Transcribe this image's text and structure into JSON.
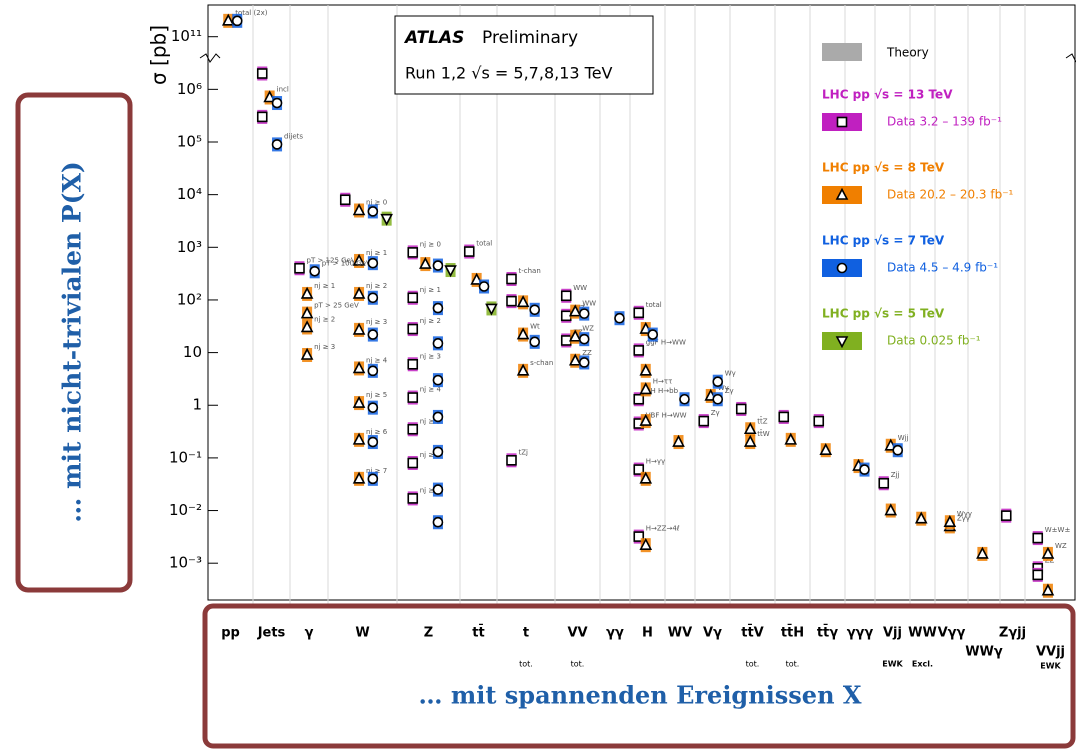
{
  "overlay": {
    "left_caption": "… mit nicht-trivialen P(X)",
    "bottom_caption": "… mit spannenden Ereignissen X"
  },
  "chart_data": {
    "type": "scatter",
    "experiment": "ATLAS",
    "status": "Preliminary",
    "run_label": "Run 1,2  √s = 5,7,8,13 TeV",
    "ylabel": "σ [pb]",
    "log_y": true,
    "ylim": [
      0.0002,
      400000000000
    ],
    "ybreak": [
      10000000,
      100000000000
    ],
    "yticks": [
      {
        "value": 100000000000,
        "label": "10¹¹"
      },
      {
        "value": 1000000,
        "label": "10⁶"
      },
      {
        "value": 100000,
        "label": "10⁵"
      },
      {
        "value": 10000,
        "label": "10⁴"
      },
      {
        "value": 1000,
        "label": "10³"
      },
      {
        "value": 100,
        "label": "10²"
      },
      10,
      1,
      {
        "value": 0.1,
        "label": "10⁻¹"
      },
      {
        "value": 0.01,
        "label": "10⁻²"
      },
      {
        "value": 0.001,
        "label": "10⁻³"
      }
    ],
    "categories": [
      "pp",
      "Jets",
      "γ",
      "W",
      "Z",
      "tt̄",
      "t",
      "VV",
      "γγ",
      "H",
      "WV",
      "Vγ",
      "tt̄V",
      "tt̄H",
      "tt̄γ",
      "γγγ",
      "Vjj",
      "WW",
      "Vγγ",
      "WWγ",
      "Zγjj",
      "VVjj"
    ],
    "sublabels": [
      null,
      null,
      null,
      null,
      null,
      null,
      "tot.",
      "tot.",
      null,
      null,
      null,
      null,
      "tot.",
      "tot.",
      null,
      null,
      "EWK",
      "Excl.",
      null,
      null,
      null,
      "EWK"
    ],
    "theory_label": "Theory",
    "theory_color": "#aaaaaa",
    "series": [
      {
        "name": "LHC pp  √s = 13 TeV",
        "lumi": "Data  3.2 – 139 fb⁻¹",
        "color": "#c020c0",
        "marker": "square",
        "x": [
          "pp",
          "Jets",
          "Jets",
          "γ",
          "W",
          "Z",
          "Z",
          "Z",
          "Z",
          "Z",
          "Z",
          "Z",
          "Z",
          "tt̄",
          "t",
          "t",
          "t",
          "VV",
          "VV",
          "VV",
          "H",
          "H",
          "H",
          "H",
          "H",
          "H",
          "Vγ",
          "tt̄V",
          "tt̄H",
          "tt̄γ",
          "Vjj",
          "Zγjj",
          "VVjj",
          "VVjj",
          "VVjj"
        ],
        "values": [
          78000000000,
          2000000,
          300000,
          400,
          8000,
          800,
          110,
          28,
          6,
          1.4,
          0.35,
          0.08,
          0.017,
          830,
          250,
          95,
          0.09,
          120,
          50,
          17,
          57,
          11,
          1.3,
          0.45,
          0.06,
          0.0032,
          0.5,
          0.85,
          0.6,
          0.5,
          0.033,
          0.008,
          0.003,
          0.0008,
          0.0006
        ],
        "labels": [
          null,
          null,
          null,
          "pT > 125 GeV",
          null,
          "nj ≥ 0",
          "nj ≥ 1",
          "nj ≥ 2",
          "nj ≥ 3",
          "nj ≥ 4",
          "nj ≥ 5",
          "nj ≥ 6",
          "nj ≥ 7",
          "total",
          "t-chan",
          null,
          "tZj",
          "WW",
          "WZ",
          "ZZ",
          "total",
          "ggF H→WW",
          "VH H→bb",
          "VBF H→WW",
          "H→γγ",
          "H→ZZ→4ℓ",
          "Zγ",
          null,
          null,
          null,
          "Zjj",
          null,
          "W±W±",
          "ZZ",
          null
        ]
      },
      {
        "name": "LHC pp  √s = 8 TeV",
        "lumi": "Data  20.2 – 20.3 fb⁻¹",
        "color": "#f07f00",
        "marker": "triangle",
        "x": [
          "pp",
          "pp",
          "Jets",
          "γ",
          "γ",
          "γ",
          "γ",
          "W",
          "W",
          "W",
          "W",
          "W",
          "W",
          "W",
          "W",
          "Z",
          "tt̄",
          "t",
          "t",
          "t",
          "VV",
          "VV",
          "VV",
          "H",
          "H",
          "H",
          "H",
          "H",
          "H",
          "WV",
          "Vγ",
          "tt̄V",
          "tt̄V",
          "tt̄H",
          "tt̄γ",
          "γγγ",
          "Vjj",
          "Vjj",
          "WW",
          "Vγγ",
          "Vγγ",
          "WWγ",
          "VVjj",
          "VVjj"
        ],
        "values": [
          200000000000,
          70000000000,
          700000,
          55,
          130,
          30,
          9,
          5000,
          550,
          130,
          27,
          5,
          1.1,
          0.22,
          0.04,
          480,
          240,
          90,
          22,
          4.5,
          60,
          20,
          7,
          28,
          4.5,
          2,
          0.5,
          0.04,
          0.0022,
          0.2,
          1.5,
          0.35,
          0.2,
          0.22,
          0.14,
          0.07,
          0.17,
          0.01,
          0.007,
          0.005,
          0.006,
          0.0015,
          0.0015,
          0.0003
        ],
        "labels": [
          "total (2x)",
          null,
          "incl",
          "pT > 25 GeV",
          "nj ≥ 1",
          "nj ≥ 2",
          "nj ≥ 3",
          "nj ≥ 0",
          "nj ≥ 1",
          "nj ≥ 2",
          "nj ≥ 3",
          "nj ≥ 4",
          "nj ≥ 5",
          "nj ≥ 6",
          "nj ≥ 7",
          null,
          null,
          null,
          "Wt",
          "s-chan",
          "WW",
          "WZ",
          "ZZ",
          null,
          null,
          "H→ττ",
          null,
          null,
          null,
          null,
          "Wγ",
          "tt̄Z",
          "tt̄W",
          null,
          null,
          null,
          "Wjj",
          null,
          null,
          "Zγγ",
          "Wγγ",
          null,
          "WZ",
          null
        ]
      },
      {
        "name": "LHC pp  √s = 7 TeV",
        "lumi": "Data  4.5 – 4.9 fb⁻¹",
        "color": "#1060e0",
        "marker": "circle",
        "x": [
          "pp",
          "pp",
          "Jets",
          "Jets",
          "γ",
          "W",
          "W",
          "W",
          "W",
          "W",
          "W",
          "W",
          "W",
          "Z",
          "Z",
          "Z",
          "Z",
          "Z",
          "Z",
          "Z",
          "Z",
          "tt̄",
          "t",
          "t",
          "VV",
          "VV",
          "VV",
          "γγ",
          "H",
          "WV",
          "Vγ",
          "Vγ",
          "γγγ",
          "Vjj"
        ],
        "values": [
          200000000000,
          70000000000,
          550000,
          90000,
          350,
          4800,
          500,
          110,
          22,
          4.5,
          0.9,
          0.2,
          0.04,
          450,
          70,
          15,
          3,
          0.6,
          0.13,
          0.025,
          0.006,
          180,
          65,
          16,
          55,
          18,
          6.5,
          45,
          22,
          1.3,
          2.8,
          1.3,
          0.06,
          0.14
        ],
        "labels": [
          null,
          "inelastic",
          null,
          "dijets",
          "pT > 100 GeV",
          null,
          null,
          null,
          null,
          null,
          null,
          null,
          null,
          null,
          null,
          null,
          null,
          null,
          null,
          null,
          null,
          null,
          null,
          null,
          null,
          null,
          null,
          null,
          null,
          null,
          "Wγ",
          "Zγ",
          null,
          null
        ]
      },
      {
        "name": "LHC pp  √s = 5 TeV",
        "lumi": "Data  0.025 fb⁻¹",
        "color": "#80b020",
        "marker": "down",
        "x": [
          "W",
          "Z",
          "tt̄"
        ],
        "values": [
          3500,
          370,
          69
        ],
        "labels": [
          null,
          null,
          null
        ]
      }
    ]
  }
}
